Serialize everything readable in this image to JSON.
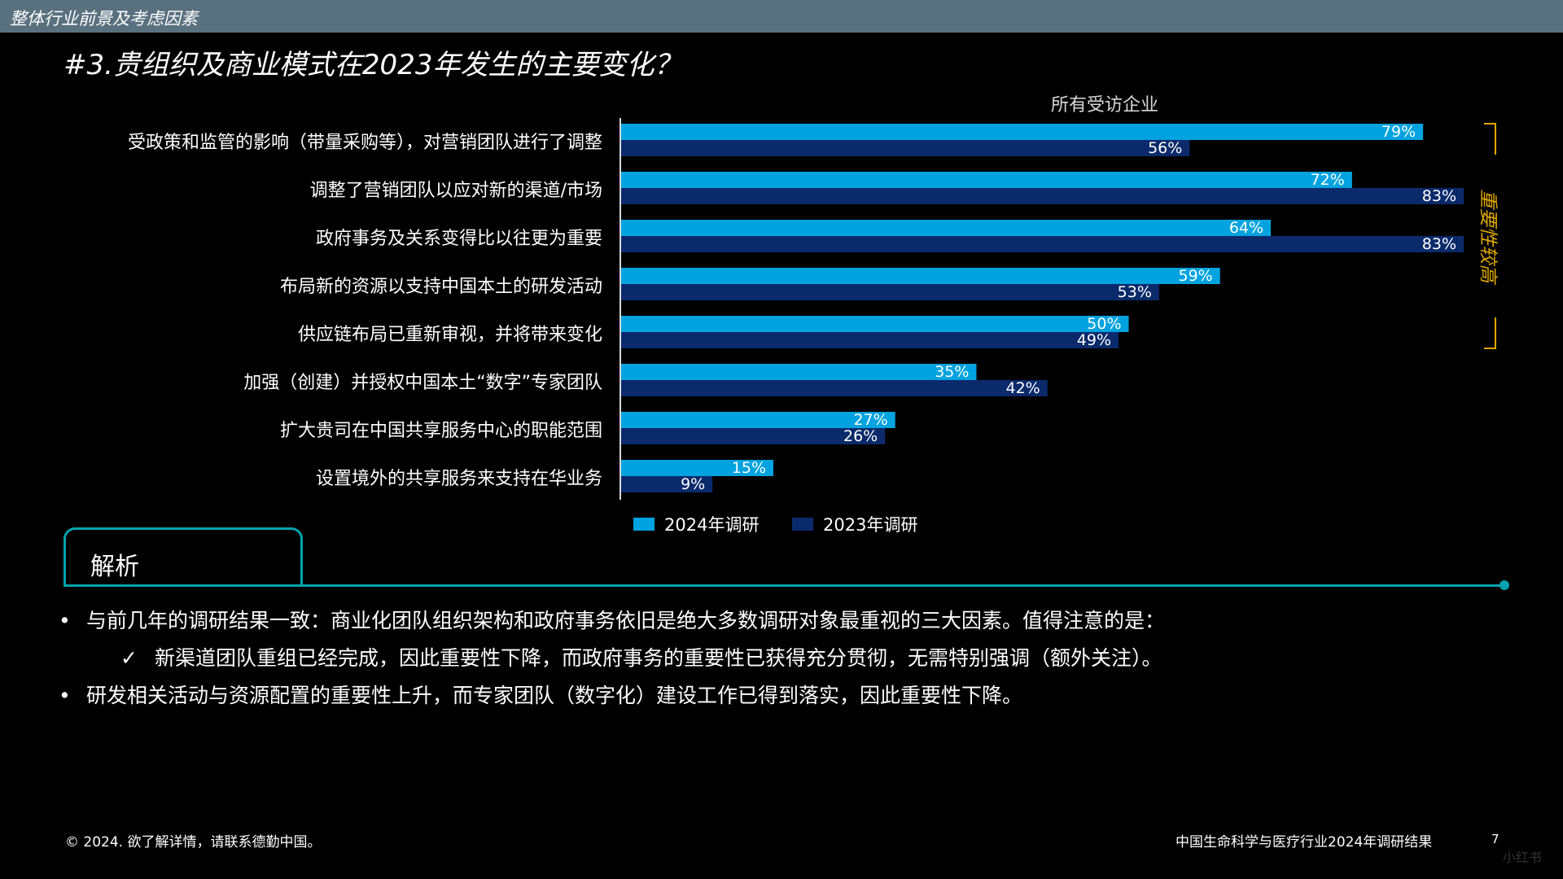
{
  "header": {
    "section_title": "整体行业前景及考虑因素"
  },
  "page_title": "#3.贵组织及商业模式在2023年发生的主要变化？",
  "chart_data": {
    "type": "bar",
    "orientation": "horizontal",
    "title": "所有受访企业",
    "categories": [
      "受政策和监管的影响（带量采购等），对营销团队进行了调整",
      "调整了营销团队以应对新的渠道/市场",
      "政府事务及关系变得比以往更为重要",
      "布局新的资源以支持中国本土的研发活动",
      "供应链布局已重新审视，并将带来变化",
      "加强（创建）并授权中国本土“数字”专家团队",
      "扩大贵司在中国共享服务中心的职能范围",
      "设置境外的共享服务来支持在华业务"
    ],
    "series": [
      {
        "name": "2024年调研",
        "color": "#00a3e0",
        "values": [
          79,
          72,
          64,
          59,
          50,
          35,
          27,
          15
        ]
      },
      {
        "name": "2023年调研",
        "color": "#0b2a6b",
        "values": [
          56,
          83,
          83,
          53,
          49,
          42,
          26,
          9
        ]
      }
    ],
    "value_suffix": "%",
    "xlim": [
      0,
      100
    ],
    "legend_position": "bottom",
    "grid": false,
    "bracket": {
      "label": "重要性较高",
      "color": "#e0a800",
      "categories_covered": [
        0,
        4
      ]
    }
  },
  "analysis": {
    "tab_label": "解析",
    "bullets": [
      {
        "marker": "•",
        "text": "与前几年的调研结果一致：商业化团队组织架构和政府事务依旧是绝大多数调研对象最重视的三大因素。值得注意的是："
      },
      {
        "marker": "✓",
        "text": "新渠道团队重组已经完成，因此重要性下降，而政府事务的重要性已获得充分贯彻，无需特别强调（额外关注）。",
        "sub": true
      },
      {
        "marker": "•",
        "text": "研发相关活动与资源配置的重要性上升，而专家团队（数字化）建设工作已得到落实，因此重要性下降。"
      }
    ]
  },
  "footer": {
    "left": "© 2024. 欲了解详情，请联系德勤中国。",
    "right": "中国生命科学与医疗行业2024年调研结果",
    "page_number": "7"
  },
  "watermark": "小红书"
}
